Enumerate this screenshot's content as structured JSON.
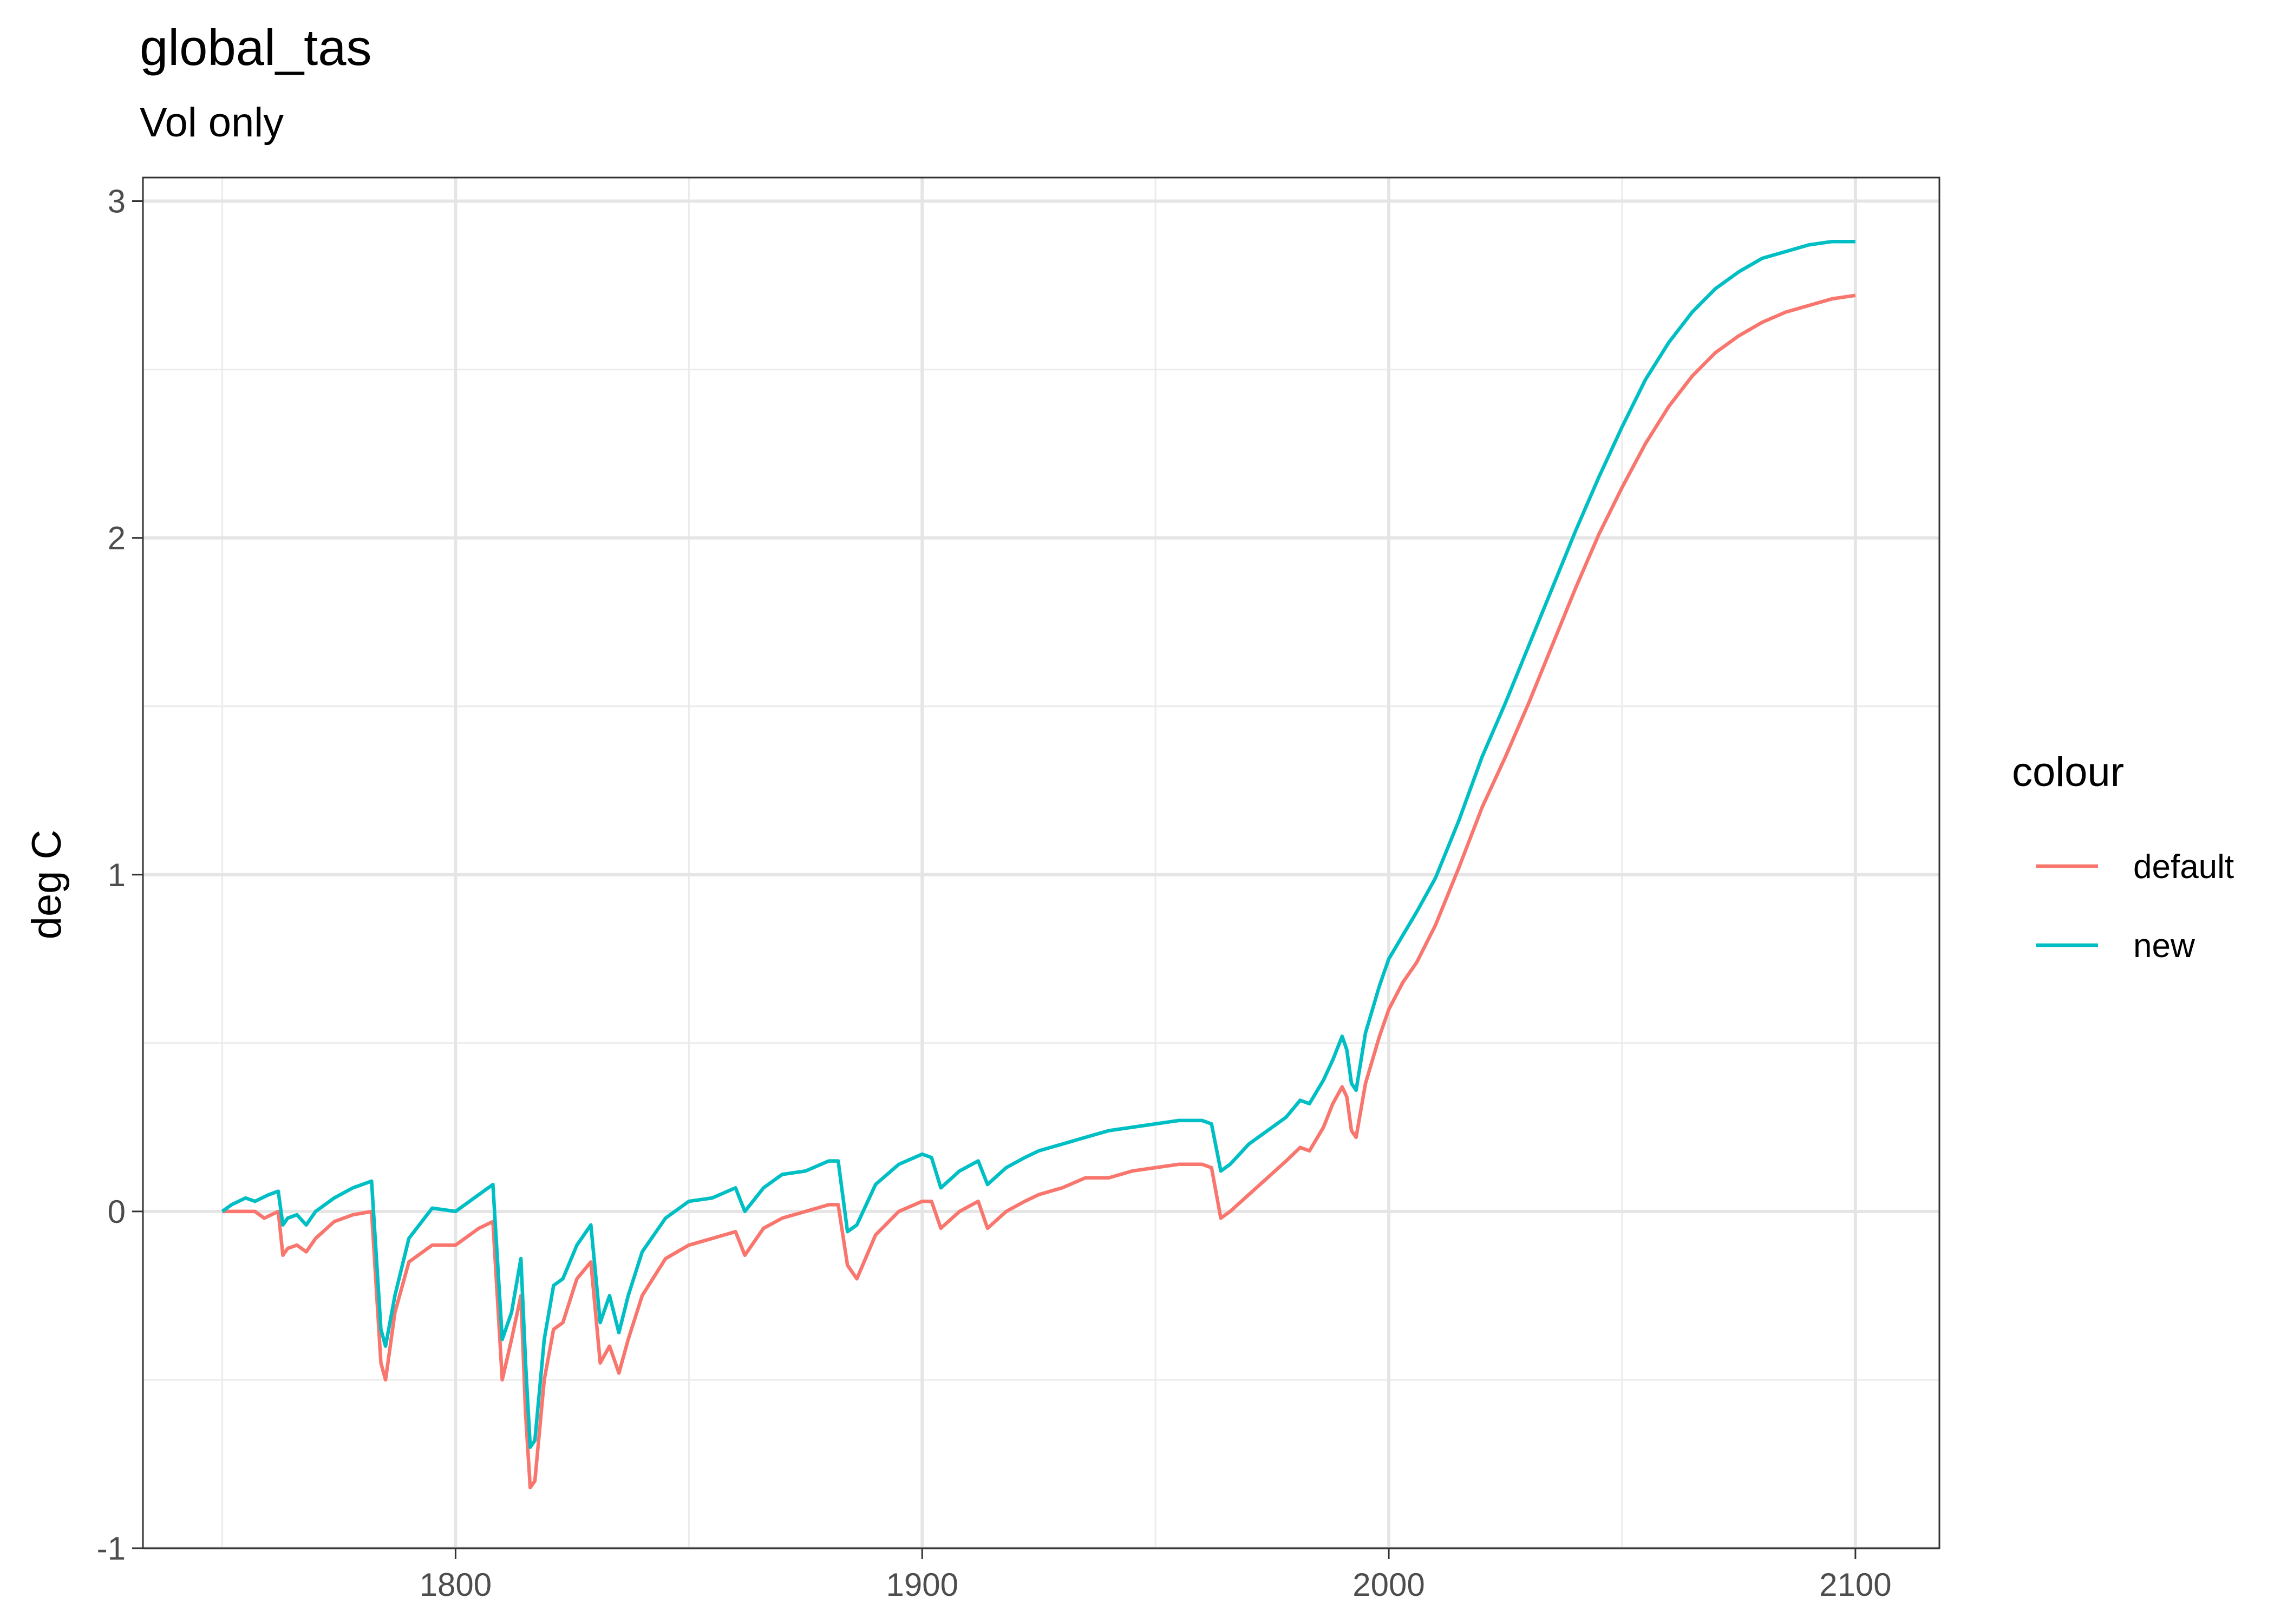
{
  "chart_data": {
    "type": "line",
    "title": "global_tas",
    "subtitle": "Vol only",
    "xlabel": "",
    "ylabel": "deg C",
    "xlim": [
      1733,
      2118
    ],
    "ylim": [
      -1,
      3.07
    ],
    "x_ticks": [
      1800,
      1900,
      2000,
      2100
    ],
    "x_tick_labels": [
      "1800",
      "1900",
      "2000",
      "2100"
    ],
    "y_ticks": [
      -1,
      0,
      1,
      2,
      3
    ],
    "y_tick_labels": [
      "-1",
      "0",
      "1",
      "2",
      "3"
    ],
    "x_minor_ticks": [
      1750,
      1850,
      1950,
      2050
    ],
    "y_minor_ticks": [
      -0.5,
      0.5,
      1.5,
      2.5
    ],
    "grid": true,
    "legend": {
      "title": "colour",
      "position": "right"
    },
    "series": [
      {
        "name": "default",
        "color": "#F8766D",
        "points": [
          [
            1750,
            0
          ],
          [
            1757,
            0.0
          ],
          [
            1759,
            -0.02
          ],
          [
            1762,
            0.0
          ],
          [
            1763,
            -0.13
          ],
          [
            1764,
            -0.11
          ],
          [
            1766,
            -0.1
          ],
          [
            1768,
            -0.12
          ],
          [
            1770,
            -0.08
          ],
          [
            1774,
            -0.03
          ],
          [
            1778,
            -0.01
          ],
          [
            1782,
            0.0
          ],
          [
            1784,
            -0.45
          ],
          [
            1785,
            -0.5
          ],
          [
            1787,
            -0.3
          ],
          [
            1790,
            -0.15
          ],
          [
            1795,
            -0.1
          ],
          [
            1800,
            -0.1
          ],
          [
            1805,
            -0.05
          ],
          [
            1808,
            -0.03
          ],
          [
            1810,
            -0.5
          ],
          [
            1812,
            -0.38
          ],
          [
            1814,
            -0.25
          ],
          [
            1815,
            -0.6
          ],
          [
            1816,
            -0.82
          ],
          [
            1817,
            -0.8
          ],
          [
            1819,
            -0.5
          ],
          [
            1821,
            -0.35
          ],
          [
            1823,
            -0.33
          ],
          [
            1826,
            -0.2
          ],
          [
            1829,
            -0.15
          ],
          [
            1831,
            -0.45
          ],
          [
            1833,
            -0.4
          ],
          [
            1835,
            -0.48
          ],
          [
            1837,
            -0.38
          ],
          [
            1840,
            -0.25
          ],
          [
            1845,
            -0.14
          ],
          [
            1850,
            -0.1
          ],
          [
            1855,
            -0.08
          ],
          [
            1860,
            -0.06
          ],
          [
            1862,
            -0.13
          ],
          [
            1866,
            -0.05
          ],
          [
            1870,
            -0.02
          ],
          [
            1875,
            0.0
          ],
          [
            1880,
            0.02
          ],
          [
            1882,
            0.02
          ],
          [
            1884,
            -0.16
          ],
          [
            1886,
            -0.2
          ],
          [
            1890,
            -0.07
          ],
          [
            1895,
            0.0
          ],
          [
            1900,
            0.03
          ],
          [
            1902,
            0.03
          ],
          [
            1904,
            -0.05
          ],
          [
            1908,
            0.0
          ],
          [
            1912,
            0.03
          ],
          [
            1914,
            -0.05
          ],
          [
            1918,
            0.0
          ],
          [
            1922,
            0.03
          ],
          [
            1925,
            0.05
          ],
          [
            1930,
            0.07
          ],
          [
            1935,
            0.1
          ],
          [
            1940,
            0.1
          ],
          [
            1945,
            0.12
          ],
          [
            1950,
            0.13
          ],
          [
            1955,
            0.14
          ],
          [
            1960,
            0.14
          ],
          [
            1962,
            0.13
          ],
          [
            1964,
            -0.02
          ],
          [
            1966,
            0.0
          ],
          [
            1970,
            0.05
          ],
          [
            1974,
            0.1
          ],
          [
            1978,
            0.15
          ],
          [
            1981,
            0.19
          ],
          [
            1983,
            0.18
          ],
          [
            1986,
            0.25
          ],
          [
            1988,
            0.32
          ],
          [
            1990,
            0.37
          ],
          [
            1991,
            0.34
          ],
          [
            1992,
            0.24
          ],
          [
            1993,
            0.22
          ],
          [
            1995,
            0.38
          ],
          [
            1998,
            0.52
          ],
          [
            2000,
            0.6
          ],
          [
            2003,
            0.68
          ],
          [
            2006,
            0.74
          ],
          [
            2010,
            0.85
          ],
          [
            2015,
            1.02
          ],
          [
            2020,
            1.2
          ],
          [
            2025,
            1.35
          ],
          [
            2030,
            1.51
          ],
          [
            2035,
            1.68
          ],
          [
            2040,
            1.85
          ],
          [
            2045,
            2.01
          ],
          [
            2050,
            2.15
          ],
          [
            2055,
            2.28
          ],
          [
            2060,
            2.39
          ],
          [
            2065,
            2.48
          ],
          [
            2070,
            2.55
          ],
          [
            2075,
            2.6
          ],
          [
            2080,
            2.64
          ],
          [
            2085,
            2.67
          ],
          [
            2090,
            2.69
          ],
          [
            2095,
            2.71
          ],
          [
            2100,
            2.72
          ]
        ]
      },
      {
        "name": "new",
        "color": "#00BFC4",
        "points": [
          [
            1750,
            0
          ],
          [
            1752,
            0.02
          ],
          [
            1755,
            0.04
          ],
          [
            1757,
            0.03
          ],
          [
            1760,
            0.05
          ],
          [
            1762,
            0.06
          ],
          [
            1763,
            -0.04
          ],
          [
            1764,
            -0.02
          ],
          [
            1766,
            -0.01
          ],
          [
            1768,
            -0.04
          ],
          [
            1770,
            0.0
          ],
          [
            1774,
            0.04
          ],
          [
            1778,
            0.07
          ],
          [
            1782,
            0.09
          ],
          [
            1784,
            -0.35
          ],
          [
            1785,
            -0.4
          ],
          [
            1787,
            -0.25
          ],
          [
            1790,
            -0.08
          ],
          [
            1795,
            0.01
          ],
          [
            1800,
            0.0
          ],
          [
            1805,
            0.05
          ],
          [
            1808,
            0.08
          ],
          [
            1810,
            -0.38
          ],
          [
            1812,
            -0.3
          ],
          [
            1814,
            -0.14
          ],
          [
            1815,
            -0.45
          ],
          [
            1816,
            -0.7
          ],
          [
            1817,
            -0.68
          ],
          [
            1819,
            -0.38
          ],
          [
            1821,
            -0.22
          ],
          [
            1823,
            -0.2
          ],
          [
            1826,
            -0.1
          ],
          [
            1829,
            -0.04
          ],
          [
            1831,
            -0.33
          ],
          [
            1833,
            -0.25
          ],
          [
            1835,
            -0.36
          ],
          [
            1837,
            -0.25
          ],
          [
            1840,
            -0.12
          ],
          [
            1845,
            -0.02
          ],
          [
            1850,
            0.03
          ],
          [
            1855,
            0.04
          ],
          [
            1860,
            0.07
          ],
          [
            1862,
            0.0
          ],
          [
            1866,
            0.07
          ],
          [
            1870,
            0.11
          ],
          [
            1875,
            0.12
          ],
          [
            1880,
            0.15
          ],
          [
            1882,
            0.15
          ],
          [
            1884,
            -0.06
          ],
          [
            1886,
            -0.04
          ],
          [
            1890,
            0.08
          ],
          [
            1895,
            0.14
          ],
          [
            1900,
            0.17
          ],
          [
            1902,
            0.16
          ],
          [
            1904,
            0.07
          ],
          [
            1908,
            0.12
          ],
          [
            1912,
            0.15
          ],
          [
            1914,
            0.08
          ],
          [
            1918,
            0.13
          ],
          [
            1922,
            0.16
          ],
          [
            1925,
            0.18
          ],
          [
            1930,
            0.2
          ],
          [
            1935,
            0.22
          ],
          [
            1940,
            0.24
          ],
          [
            1945,
            0.25
          ],
          [
            1950,
            0.26
          ],
          [
            1955,
            0.27
          ],
          [
            1960,
            0.27
          ],
          [
            1962,
            0.26
          ],
          [
            1964,
            0.12
          ],
          [
            1966,
            0.14
          ],
          [
            1970,
            0.2
          ],
          [
            1974,
            0.24
          ],
          [
            1978,
            0.28
          ],
          [
            1981,
            0.33
          ],
          [
            1983,
            0.32
          ],
          [
            1986,
            0.39
          ],
          [
            1988,
            0.45
          ],
          [
            1990,
            0.52
          ],
          [
            1991,
            0.48
          ],
          [
            1992,
            0.38
          ],
          [
            1993,
            0.36
          ],
          [
            1995,
            0.53
          ],
          [
            1998,
            0.67
          ],
          [
            2000,
            0.75
          ],
          [
            2003,
            0.82
          ],
          [
            2006,
            0.89
          ],
          [
            2010,
            0.99
          ],
          [
            2015,
            1.16
          ],
          [
            2020,
            1.35
          ],
          [
            2025,
            1.51
          ],
          [
            2030,
            1.68
          ],
          [
            2035,
            1.85
          ],
          [
            2040,
            2.02
          ],
          [
            2045,
            2.18
          ],
          [
            2050,
            2.33
          ],
          [
            2055,
            2.47
          ],
          [
            2060,
            2.58
          ],
          [
            2065,
            2.67
          ],
          [
            2070,
            2.74
          ],
          [
            2075,
            2.79
          ],
          [
            2080,
            2.83
          ],
          [
            2085,
            2.85
          ],
          [
            2090,
            2.87
          ],
          [
            2095,
            2.88
          ],
          [
            2100,
            2.88
          ]
        ]
      }
    ]
  }
}
